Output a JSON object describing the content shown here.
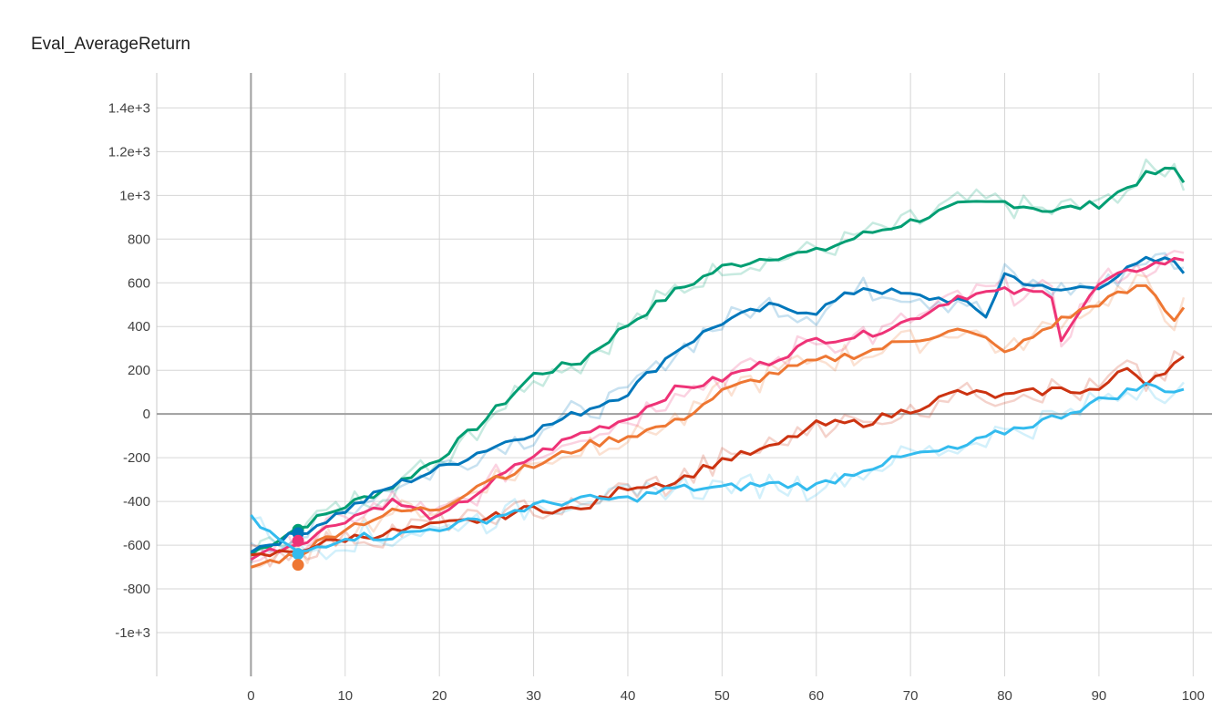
{
  "chart_data": {
    "type": "line",
    "title": "Eval_AverageReturn",
    "xlabel": "",
    "ylabel": "",
    "xlim": [
      -10,
      102
    ],
    "ylim": [
      -1200,
      1560
    ],
    "x_ticks": [
      0,
      10,
      20,
      30,
      40,
      50,
      60,
      70,
      80,
      90,
      100
    ],
    "y_ticks": [
      -1000,
      -800,
      -600,
      -400,
      -200,
      0,
      200,
      400,
      600,
      800,
      1000,
      1200,
      1400
    ],
    "x_tick_labels": [
      "0",
      "10",
      "20",
      "30",
      "40",
      "50",
      "60",
      "70",
      "80",
      "90",
      "100"
    ],
    "y_tick_labels": [
      "-1e+3",
      "-800",
      "-600",
      "-400",
      "-200",
      "0",
      "200",
      "400",
      "600",
      "800",
      "1e+3",
      "1.2e+3",
      "1.4e+3"
    ],
    "grid": true,
    "series": [
      {
        "color": "#009e73",
        "keypoints": [
          [
            0,
            -640
          ],
          [
            5,
            -520
          ],
          [
            10,
            -420
          ],
          [
            15,
            -330
          ],
          [
            20,
            -200
          ],
          [
            25,
            -20
          ],
          [
            30,
            180
          ],
          [
            35,
            240
          ],
          [
            40,
            410
          ],
          [
            45,
            560
          ],
          [
            50,
            670
          ],
          [
            55,
            720
          ],
          [
            60,
            740
          ],
          [
            65,
            820
          ],
          [
            70,
            880
          ],
          [
            75,
            950
          ],
          [
            80,
            970
          ],
          [
            85,
            930
          ],
          [
            90,
            960
          ],
          [
            95,
            1090
          ],
          [
            98,
            1120
          ],
          [
            99,
            1060
          ]
        ]
      },
      {
        "color": "#0077bb",
        "keypoints": [
          [
            0,
            -620
          ],
          [
            5,
            -550
          ],
          [
            10,
            -440
          ],
          [
            15,
            -330
          ],
          [
            20,
            -250
          ],
          [
            25,
            -160
          ],
          [
            30,
            -80
          ],
          [
            35,
            10
          ],
          [
            40,
            100
          ],
          [
            45,
            290
          ],
          [
            50,
            420
          ],
          [
            55,
            490
          ],
          [
            60,
            470
          ],
          [
            65,
            580
          ],
          [
            70,
            540
          ],
          [
            75,
            520
          ],
          [
            78,
            450
          ],
          [
            80,
            640
          ],
          [
            85,
            560
          ],
          [
            90,
            590
          ],
          [
            95,
            700
          ],
          [
            98,
            700
          ],
          [
            99,
            660
          ]
        ]
      },
      {
        "color": "#ee3377",
        "keypoints": [
          [
            0,
            -650
          ],
          [
            5,
            -590
          ],
          [
            10,
            -480
          ],
          [
            15,
            -400
          ],
          [
            20,
            -480
          ],
          [
            25,
            -330
          ],
          [
            30,
            -190
          ],
          [
            35,
            -90
          ],
          [
            40,
            -20
          ],
          [
            45,
            110
          ],
          [
            50,
            160
          ],
          [
            55,
            240
          ],
          [
            60,
            340
          ],
          [
            65,
            360
          ],
          [
            70,
            430
          ],
          [
            75,
            540
          ],
          [
            80,
            560
          ],
          [
            85,
            550
          ],
          [
            86,
            350
          ],
          [
            90,
            590
          ],
          [
            95,
            680
          ],
          [
            98,
            700
          ],
          [
            99,
            710
          ]
        ]
      },
      {
        "color": "#ee7733",
        "keypoints": [
          [
            0,
            -700
          ],
          [
            5,
            -640
          ],
          [
            10,
            -520
          ],
          [
            15,
            -450
          ],
          [
            20,
            -430
          ],
          [
            25,
            -300
          ],
          [
            30,
            -240
          ],
          [
            35,
            -150
          ],
          [
            40,
            -100
          ],
          [
            45,
            -40
          ],
          [
            50,
            100
          ],
          [
            55,
            180
          ],
          [
            60,
            240
          ],
          [
            65,
            280
          ],
          [
            70,
            340
          ],
          [
            75,
            380
          ],
          [
            79,
            330
          ],
          [
            80,
            270
          ],
          [
            85,
            410
          ],
          [
            90,
            510
          ],
          [
            95,
            590
          ],
          [
            98,
            430
          ],
          [
            99,
            500
          ]
        ]
      },
      {
        "color": "#cc3311",
        "keypoints": [
          [
            0,
            -660
          ],
          [
            5,
            -620
          ],
          [
            10,
            -570
          ],
          [
            15,
            -540
          ],
          [
            20,
            -510
          ],
          [
            25,
            -480
          ],
          [
            30,
            -430
          ],
          [
            35,
            -440
          ],
          [
            40,
            -330
          ],
          [
            45,
            -310
          ],
          [
            50,
            -210
          ],
          [
            55,
            -160
          ],
          [
            60,
            -50
          ],
          [
            65,
            -40
          ],
          [
            70,
            20
          ],
          [
            75,
            100
          ],
          [
            80,
            80
          ],
          [
            85,
            110
          ],
          [
            90,
            110
          ],
          [
            93,
            210
          ],
          [
            95,
            150
          ],
          [
            98,
            230
          ],
          [
            99,
            250
          ]
        ]
      },
      {
        "color": "#33bbee",
        "keypoints": [
          [
            0,
            -480
          ],
          [
            5,
            -640
          ],
          [
            10,
            -560
          ],
          [
            15,
            -560
          ],
          [
            20,
            -520
          ],
          [
            25,
            -480
          ],
          [
            30,
            -420
          ],
          [
            35,
            -390
          ],
          [
            40,
            -390
          ],
          [
            45,
            -340
          ],
          [
            50,
            -340
          ],
          [
            55,
            -320
          ],
          [
            60,
            -330
          ],
          [
            65,
            -250
          ],
          [
            70,
            -190
          ],
          [
            75,
            -160
          ],
          [
            80,
            -80
          ],
          [
            85,
            -20
          ],
          [
            90,
            60
          ],
          [
            95,
            130
          ],
          [
            98,
            110
          ],
          [
            99,
            110
          ]
        ]
      }
    ],
    "markers": [
      {
        "x": 5,
        "y": -530,
        "color": "#009e73"
      },
      {
        "x": 5,
        "y": -545,
        "color": "#0077bb"
      },
      {
        "x": 5,
        "y": -580,
        "color": "#ee3377"
      },
      {
        "x": 5,
        "y": -640,
        "color": "#33bbee"
      },
      {
        "x": 5,
        "y": -690,
        "color": "#ee7733"
      }
    ]
  }
}
